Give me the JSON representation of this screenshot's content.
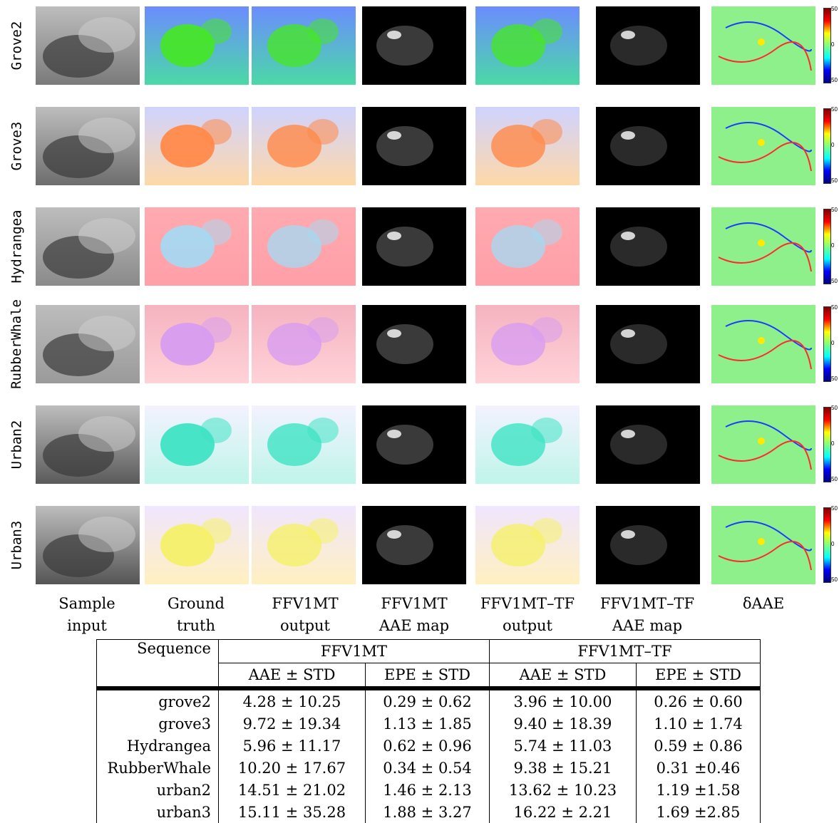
{
  "rows": [
    {
      "label": "Grove2"
    },
    {
      "label": "Grove3"
    },
    {
      "label": "Hydrangea"
    },
    {
      "label": "RubberWhale"
    },
    {
      "label": "Urban2"
    },
    {
      "label": "Urban3"
    }
  ],
  "captions": [
    {
      "line1": "Sample",
      "line2": "input"
    },
    {
      "line1": "Ground",
      "line2": "truth"
    },
    {
      "line1": "FFV1MT",
      "line2": "output"
    },
    {
      "line1": "FFV1MT",
      "line2": "AAE map"
    },
    {
      "line1": "FFV1MT–TF",
      "line2": "output"
    },
    {
      "line1": "FFV1MT–TF",
      "line2": "AAE map"
    },
    {
      "line1": "δAAE",
      "line2": ""
    }
  ],
  "colorbar": {
    "top": "50",
    "mid": "0",
    "bottom": "50"
  },
  "table": {
    "header": {
      "sequence": "Sequence",
      "group1": "FFV1MT",
      "group2": "FFV1MT–TF",
      "aae": "AAE ± STD",
      "epe": "EPE ± STD"
    },
    "rows": [
      {
        "seq": "grove2",
        "aae1": "4.28 ± 10.25",
        "epe1": "0.29 ± 0.62",
        "aae2": "3.96 ± 10.00",
        "epe2": "0.26 ± 0.60"
      },
      {
        "seq": "grove3",
        "aae1": "9.72 ± 19.34",
        "epe1": "1.13 ± 1.85",
        "aae2": "9.40 ± 18.39",
        "epe2": "1.10 ± 1.74"
      },
      {
        "seq": "Hydrangea",
        "aae1": "5.96 ± 11.17",
        "epe1": "0.62 ± 0.96",
        "aae2": "5.74 ± 11.03",
        "epe2": "0.59 ± 0.86"
      },
      {
        "seq": "RubberWhale",
        "aae1": "10.20 ± 17.67",
        "epe1": "0.34 ± 0.54",
        "aae2": "9.38 ± 15.21",
        "epe2": "0.31 ±0.46"
      },
      {
        "seq": "urban2",
        "aae1": "14.51 ± 21.02",
        "epe1": "1.46 ± 2.13",
        "aae2": "13.62 ± 10.23",
        "epe2": "1.19 ±1.58"
      },
      {
        "seq": "urban3",
        "aae1": "15.11 ± 35.28",
        "epe1": "1.88 ± 3.27",
        "aae2": "16.22 ± 2.21",
        "epe2": "1.69 ±2.85"
      }
    ]
  },
  "palette": {
    "grove2": {
      "input": "#7a7a7a",
      "top": "#6c8cff",
      "bottom": "#4bd9a6",
      "blob": "#47e52a",
      "err": "#2a2a2a"
    },
    "grove3": {
      "input": "#6d6d6d",
      "top": "#cfd3ff",
      "bottom": "#ffd8a8",
      "blob": "#ff8a4a",
      "err": "#1e1e1e"
    },
    "hydrangea": {
      "input": "#8a8a8a",
      "top": "#ffaab0",
      "bottom": "#ff9fa8",
      "blob": "#a8d8f0",
      "err": "#0a0a0a"
    },
    "rubberwhale": {
      "input": "#9a9a9a",
      "top": "#f5b3c0",
      "bottom": "#ffd2d8",
      "blob": "#d89cf0",
      "err": "#101010"
    },
    "urban2": {
      "input": "#5a5a5a",
      "top": "#f4f2ff",
      "bottom": "#bff5ea",
      "blob": "#3fe3c4",
      "err": "#141414"
    },
    "urban3": {
      "input": "#555555",
      "top": "#f0e6ff",
      "bottom": "#fff0c0",
      "blob": "#f5f06a",
      "err": "#050505"
    },
    "delta_bg": "#8ef08a"
  }
}
